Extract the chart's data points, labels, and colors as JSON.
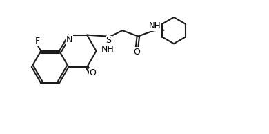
{
  "bg_color": "#ffffff",
  "line_color": "#1a1a1a",
  "line_width": 1.5,
  "font_size": 9,
  "labels": {
    "F": "F",
    "O1": "O",
    "NH": "NH",
    "N": "N",
    "S": "S",
    "O2": "O",
    "H": "H"
  }
}
